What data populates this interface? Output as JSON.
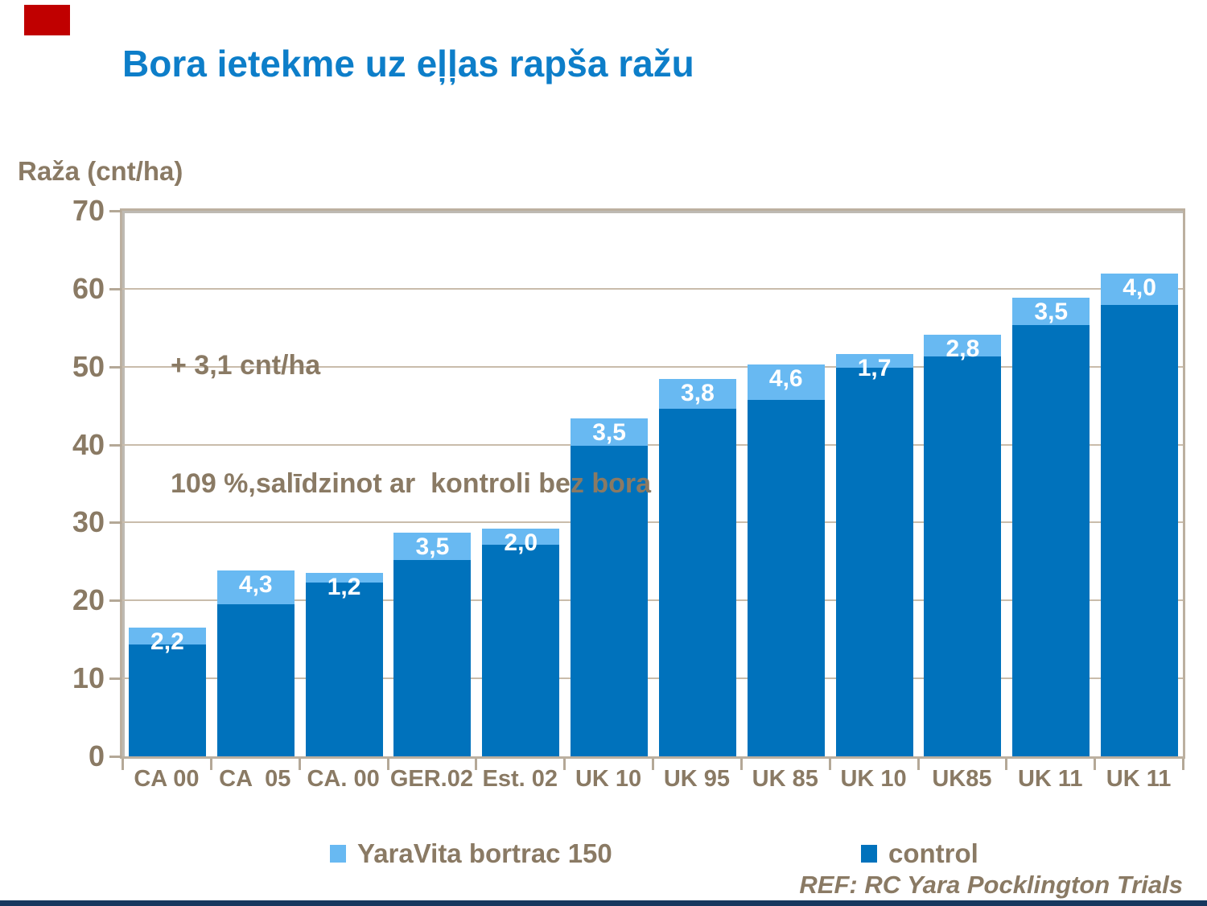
{
  "page": {
    "title": "Bora ietekme uz eļļas rapša ražu",
    "footer_ref": "REF: RC Yara Pocklington Trials",
    "colors": {
      "title_blue": "#0d7ec9",
      "text_brown": "#8a7a64",
      "control_blue": "#0072bc",
      "yara_light_blue": "#68b9f2",
      "grid_taupe": "#c9bcab",
      "accent_red": "#c00000",
      "bottom_strip_navy": "#17375e"
    }
  },
  "chart_data": {
    "type": "bar",
    "stacked": true,
    "title": "Bora ietekme uz eļļas rapša ražu",
    "xlabel": "",
    "ylabel": "Raža (cnt/ha)",
    "ylim": [
      0,
      70
    ],
    "yticks": [
      0,
      10,
      20,
      30,
      40,
      50,
      60,
      70
    ],
    "grid": true,
    "legend_position": "bottom",
    "categories": [
      "CA 00",
      "CA  05",
      "CA. 00",
      "GER.02",
      "Est. 02",
      "UK 10",
      "UK 95",
      "UK 85",
      "UK 10",
      "UK85",
      "UK 11",
      "UK 11"
    ],
    "series": [
      {
        "name": "control",
        "color": "#0072bc",
        "values": [
          14.3,
          19.5,
          22.3,
          25.2,
          27.2,
          39.9,
          44.6,
          45.7,
          49.9,
          51.3,
          55.3,
          57.9
        ]
      },
      {
        "name": "YaraVita bortrac 150",
        "color": "#68b9f2",
        "values": [
          2.2,
          4.3,
          1.2,
          3.5,
          2.0,
          3.5,
          3.8,
          4.6,
          1.7,
          2.8,
          3.5,
          4.0
        ],
        "value_labels": [
          "2,2",
          "4,3",
          "1,2",
          "3,5",
          "2,0",
          "3,5",
          "3,8",
          "4,6",
          "1,7",
          "2,8",
          "3,5",
          "4,0"
        ]
      }
    ],
    "annotation": {
      "line1": "+ 3,1 cnt/ha",
      "line2": "109 %,salīdzinot ar  kontroli bez bora"
    }
  },
  "legend": {
    "items": [
      {
        "label": "YaraVita bortrac 150",
        "color": "#68b9f2"
      },
      {
        "label": "control",
        "color": "#0072bc"
      }
    ]
  }
}
